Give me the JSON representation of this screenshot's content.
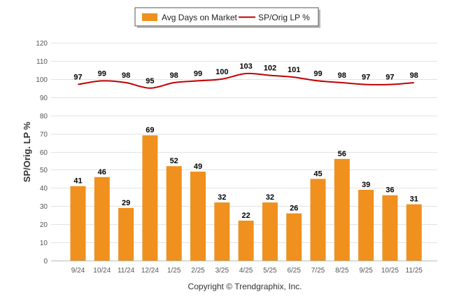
{
  "chart_data": {
    "type": "bar",
    "title": "",
    "ylabel": "SP/Orig. LP %",
    "xlabel": "",
    "ylim": [
      0,
      120
    ],
    "yticks": [
      0,
      10,
      20,
      30,
      40,
      50,
      60,
      70,
      80,
      90,
      100,
      110,
      120
    ],
    "categories": [
      "9/24",
      "10/24",
      "11/24",
      "12/24",
      "1/25",
      "2/25",
      "3/25",
      "4/25",
      "5/25",
      "6/25",
      "7/25",
      "8/25",
      "9/25",
      "10/25",
      "11/25"
    ],
    "series": [
      {
        "name": "Avg Days on Market",
        "type": "bar",
        "color": "#f0901e",
        "values": [
          41,
          46,
          29,
          69,
          52,
          49,
          32,
          22,
          32,
          26,
          45,
          56,
          39,
          36,
          31
        ]
      },
      {
        "name": "SP/Orig LP %",
        "type": "line",
        "color": "#c00000",
        "values": [
          97,
          99,
          98,
          95,
          98,
          99,
          100,
          103,
          102,
          101,
          99,
          98,
          97,
          97,
          98
        ]
      }
    ],
    "legend_position": "top-center",
    "grid": true
  },
  "footer": {
    "copyright": "Copyright © Trendgraphix, Inc."
  }
}
